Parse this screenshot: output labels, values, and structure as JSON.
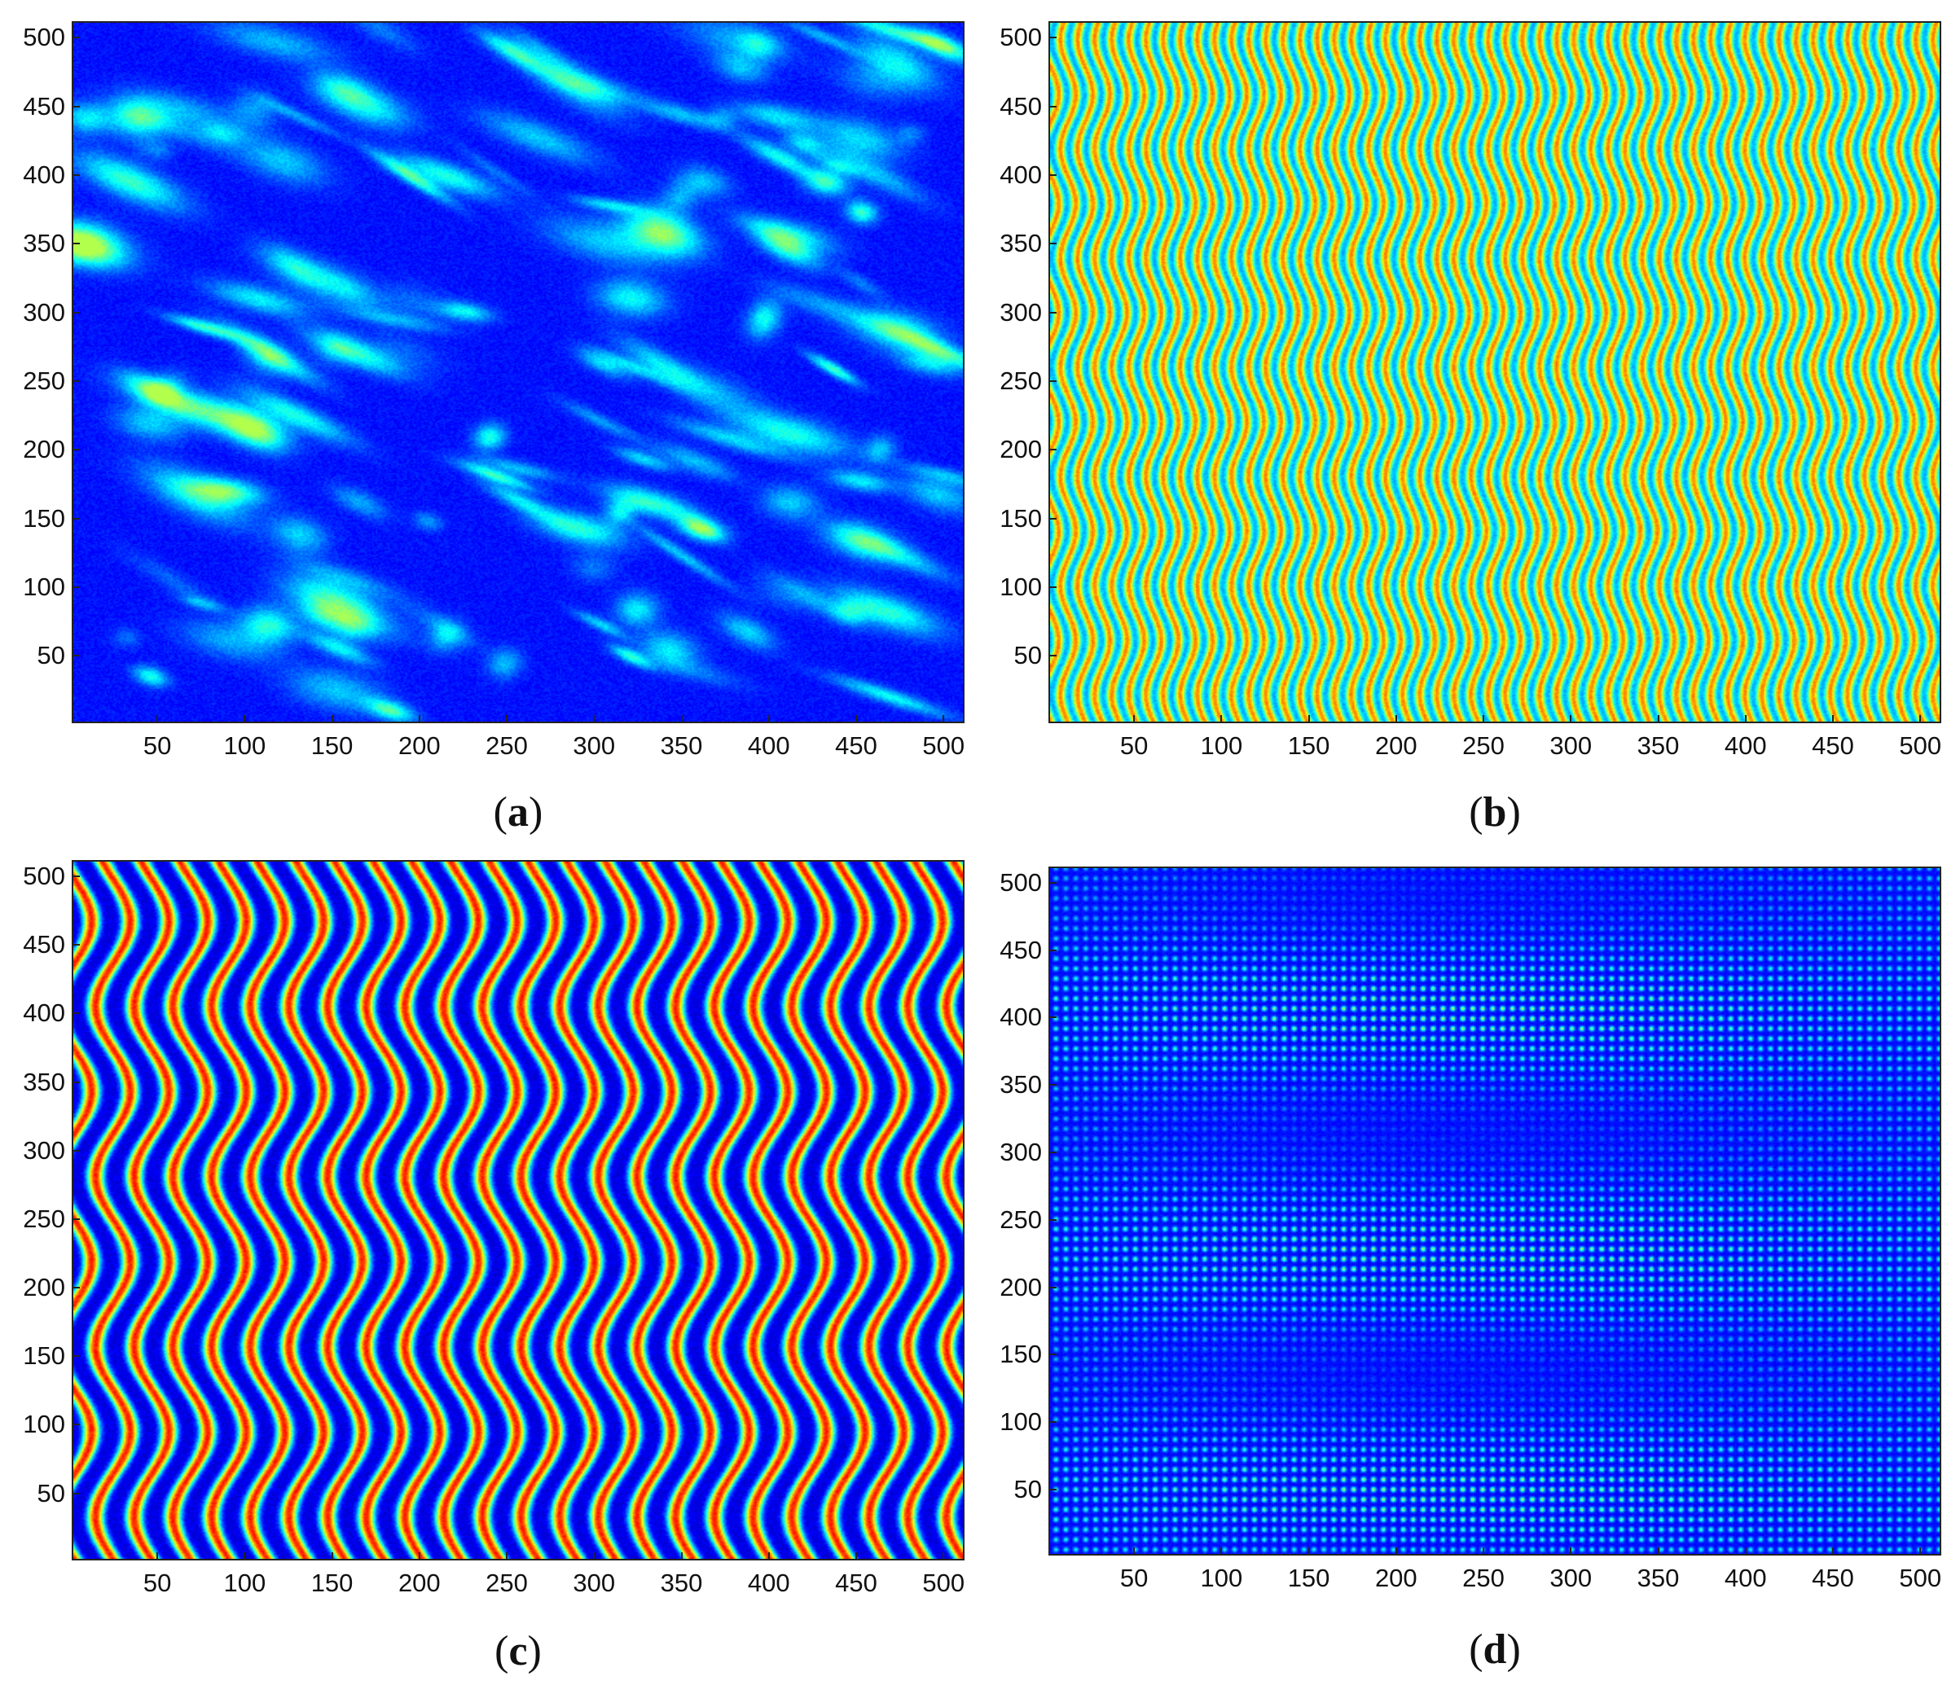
{
  "chart_data": [
    {
      "id": "a",
      "type": "heatmap",
      "panel_label": {
        "open": "(",
        "letter": "a",
        "close": ")"
      },
      "pattern": "speckle",
      "colormap": "jet",
      "xlim": [
        1,
        512
      ],
      "ylim": [
        1,
        512
      ],
      "xticks": [
        50,
        100,
        150,
        200,
        250,
        300,
        350,
        400,
        450,
        500
      ],
      "yticks": [
        50,
        100,
        150,
        200,
        250,
        300,
        350,
        400,
        450,
        500
      ],
      "xtick_labels": [
        "50",
        "100",
        "150",
        "200",
        "250",
        "300",
        "350",
        "400",
        "450",
        "500"
      ],
      "ytick_labels": [
        "50",
        "100",
        "150",
        "200",
        "250",
        "300",
        "350",
        "400",
        "450",
        "500"
      ],
      "value_range": [
        0.05,
        0.55
      ]
    },
    {
      "id": "b",
      "type": "heatmap",
      "panel_label": {
        "open": "(",
        "letter": "b",
        "close": ")"
      },
      "pattern": "dense-wavy-fringes",
      "colormap": "jet",
      "fringe_count": 52,
      "wave_period": 80,
      "xlim": [
        1,
        512
      ],
      "ylim": [
        1,
        512
      ],
      "xticks": [
        50,
        100,
        150,
        200,
        250,
        300,
        350,
        400,
        450,
        500
      ],
      "yticks": [
        50,
        100,
        150,
        200,
        250,
        300,
        350,
        400,
        450,
        500
      ],
      "xtick_labels": [
        "50",
        "100",
        "150",
        "200",
        "250",
        "300",
        "350",
        "400",
        "450",
        "500"
      ],
      "ytick_labels": [
        "50",
        "100",
        "150",
        "200",
        "250",
        "300",
        "350",
        "400",
        "450",
        "500"
      ],
      "value_range": [
        0.3,
        0.75
      ]
    },
    {
      "id": "c",
      "type": "heatmap",
      "panel_label": {
        "open": "(",
        "letter": "c",
        "close": ")"
      },
      "pattern": "wavy-fringes",
      "colormap": "jet",
      "fringe_count": 23,
      "wave_period": 125,
      "xlim": [
        1,
        512
      ],
      "ylim": [
        1,
        512
      ],
      "xticks": [
        50,
        100,
        150,
        200,
        250,
        300,
        350,
        400,
        450,
        500
      ],
      "yticks": [
        50,
        100,
        150,
        200,
        250,
        300,
        350,
        400,
        450,
        500
      ],
      "xtick_labels": [
        "50",
        "100",
        "150",
        "200",
        "250",
        "300",
        "350",
        "400",
        "450",
        "500"
      ],
      "ytick_labels": [
        "50",
        "100",
        "150",
        "200",
        "250",
        "300",
        "350",
        "400",
        "450",
        "500"
      ],
      "value_range": [
        0.1,
        0.85
      ]
    },
    {
      "id": "d",
      "type": "heatmap",
      "panel_label": {
        "open": "(",
        "letter": "d",
        "close": ")"
      },
      "pattern": "dotted-residual",
      "colormap": "jet",
      "xlim": [
        1,
        512
      ],
      "ylim": [
        1,
        512
      ],
      "xticks": [
        50,
        100,
        150,
        200,
        250,
        300,
        350,
        400,
        450,
        500
      ],
      "yticks": [
        50,
        100,
        150,
        200,
        250,
        300,
        350,
        400,
        450,
        500
      ],
      "xtick_labels": [
        "50",
        "100",
        "150",
        "200",
        "250",
        "300",
        "350",
        "400",
        "450",
        "500"
      ],
      "ytick_labels": [
        "50",
        "100",
        "150",
        "200",
        "250",
        "300",
        "350",
        "400",
        "450",
        "500"
      ],
      "value_range": [
        0.05,
        0.5
      ]
    }
  ]
}
